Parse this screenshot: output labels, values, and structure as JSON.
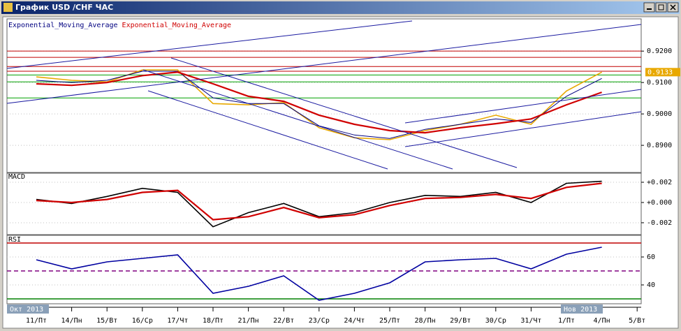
{
  "window": {
    "title": "График USD /CHF ЧАС"
  },
  "x_axis": {
    "categories": [
      "11/Пт",
      "14/Пн",
      "15/Вт",
      "16/Ср",
      "17/Чт",
      "18/Пт",
      "21/Пн",
      "22/Вт",
      "23/Ср",
      "24/Чт",
      "25/Пт",
      "28/Пн",
      "29/Вт",
      "30/Ср",
      "31/Чт",
      "1/Пт",
      "4/Пн",
      "5/Вт"
    ],
    "period_labels": [
      "Окт 2013",
      "Нов 2013"
    ]
  },
  "chart_data": [
    {
      "type": "line",
      "legend": [
        "Exponential_Moving_Average",
        "Exponential_Moving_Average"
      ],
      "ylim": [
        0.8818,
        0.9296
      ],
      "yticks": [
        {
          "value": 0.92,
          "label": "0.9200"
        },
        {
          "value": 0.91,
          "label": "0.9100"
        },
        {
          "value": 0.9,
          "label": "0.9000"
        },
        {
          "value": 0.89,
          "label": "0.8900"
        }
      ],
      "grid": true,
      "hlines": [
        {
          "value": 0.92,
          "color": "#c00000"
        },
        {
          "value": 0.918,
          "color": "#c00000"
        },
        {
          "value": 0.9151,
          "color": "#c00000"
        },
        {
          "value": 0.9136,
          "color": "#c00000"
        },
        {
          "value": 0.9124,
          "color": "#00a000"
        },
        {
          "value": 0.9102,
          "color": "#00a000"
        },
        {
          "value": 0.9051,
          "color": "#00a000"
        }
      ],
      "series": [
        {
          "color": "#e8a800",
          "values": [
            0.9118,
            0.9107,
            0.9102,
            0.914,
            0.914,
            0.9033,
            0.9029,
            0.9036,
            0.8956,
            0.8924,
            0.8918,
            0.8947,
            0.8967,
            0.8996,
            0.8967,
            0.9073,
            0.9133,
            null
          ]
        },
        {
          "name": "Exponential_Moving_Average",
          "color": "#000080",
          "values": [
            0.9107,
            0.91,
            0.9107,
            0.9136,
            0.9136,
            0.9051,
            0.9033,
            0.9033,
            0.8962,
            0.8933,
            0.8922,
            0.8951,
            0.8967,
            0.8984,
            0.8973,
            0.9056,
            0.9113,
            null
          ]
        },
        {
          "name": "Exponential_Moving_Average",
          "color": "#d00000",
          "values": [
            0.9096,
            0.9091,
            0.91,
            0.9122,
            0.9133,
            0.9096,
            0.9056,
            0.904,
            0.8996,
            0.8967,
            0.8947,
            0.894,
            0.8956,
            0.8969,
            0.8984,
            0.9029,
            0.9069,
            null
          ]
        }
      ],
      "price_tag": {
        "value": 0.9133,
        "label": "0.9133"
      }
    },
    {
      "type": "line",
      "title": "MACD",
      "ylim": [
        -0.00297,
        0.00276
      ],
      "yticks": [
        {
          "value": 0.002,
          "label": "+0.002"
        },
        {
          "value": 0,
          "label": "+0.000"
        },
        {
          "value": -0.002,
          "label": "-0.002"
        }
      ],
      "grid": true,
      "series": [
        {
          "color": "#000000",
          "values": [
            0.0003,
            -0.0001,
            0.0006,
            0.0014,
            0.001,
            -0.0024,
            -0.001,
            -0.0001,
            -0.0014,
            -0.001,
            0,
            0.0007,
            0.0006,
            0.001,
            0,
            0.0019,
            0.0021,
            null
          ]
        },
        {
          "color": "#d00000",
          "values": [
            0.0002,
            0,
            0.0003,
            0.001,
            0.0012,
            -0.0017,
            -0.0014,
            -0.0005,
            -0.0015,
            -0.0012,
            -0.0003,
            0.0004,
            0.0005,
            0.0008,
            0.0004,
            0.0015,
            0.0019,
            null
          ]
        }
      ]
    },
    {
      "type": "line",
      "title": "RSI",
      "ylim": [
        28,
        74
      ],
      "yticks": [
        60,
        40
      ],
      "grid": true,
      "hlines": [
        {
          "value": 70,
          "color": "#c00000"
        },
        {
          "value": 50,
          "color": "#800080"
        },
        {
          "value": 30,
          "color": "#008000"
        }
      ],
      "series": [
        {
          "color": "#0000a0",
          "values": [
            58,
            51.5,
            56.5,
            59,
            61.5,
            34,
            39,
            46.5,
            29,
            34,
            41.5,
            56.5,
            58,
            59,
            51.5,
            62,
            67,
            null
          ]
        }
      ]
    }
  ]
}
